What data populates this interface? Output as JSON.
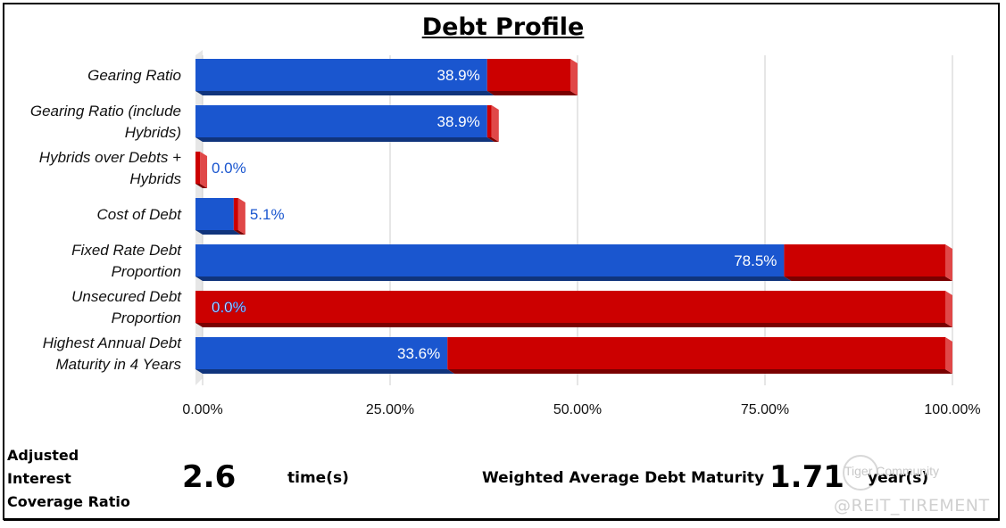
{
  "chart_data": {
    "type": "bar",
    "orientation": "horizontal",
    "stacked": true,
    "title": "Debt Profile",
    "categories": [
      "Gearing Ratio",
      "Gearing Ratio (include Hybrids)",
      "Hybrids over Debts + Hybrids",
      "Cost of Debt",
      "Fixed Rate Debt Proportion",
      "Unsecured Debt Proportion",
      "Highest Annual Debt Maturity in 4 Years"
    ],
    "category_lines": [
      [
        "Gearing Ratio"
      ],
      [
        "Gearing Ratio (include",
        "Hybrids)"
      ],
      [
        "Hybrids over Debts +",
        "Hybrids"
      ],
      [
        "Cost of Debt"
      ],
      [
        "Fixed Rate Debt",
        "Proportion"
      ],
      [
        "Unsecured Debt",
        "Proportion"
      ],
      [
        "Highest Annual Debt",
        "Maturity in 4 Years"
      ]
    ],
    "series": [
      {
        "values": [
          38.9,
          38.9,
          0.0,
          5.1,
          78.5,
          0.0,
          33.6
        ],
        "color": "#1a56cf"
      },
      {
        "values": [
          11.1,
          0.6,
          0.6,
          0.6,
          21.5,
          100.0,
          66.4
        ],
        "color": "#cc0000"
      }
    ],
    "data_labels": [
      "38.9%",
      "38.9%",
      "0.0%",
      "5.1%",
      "78.5%",
      "0.0%",
      "33.6%"
    ],
    "x_ticks": [
      "0.00%",
      "25.00%",
      "50.00%",
      "75.00%",
      "100.00%"
    ],
    "xlim": [
      0,
      100
    ],
    "grid": true,
    "legend": "none"
  },
  "footer": {
    "icr_label_lines": [
      "Adjusted",
      "Interest",
      "Coverage Ratio"
    ],
    "icr_value": "2.6",
    "icr_unit": "time(s)",
    "wadm_label": "Weighted Average Debt Maturity",
    "wadm_value": "1.71",
    "wadm_unit": "year(s)"
  },
  "watermark": {
    "line1": "Tiger Community",
    "line2": "@REIT_TIREMENT"
  }
}
